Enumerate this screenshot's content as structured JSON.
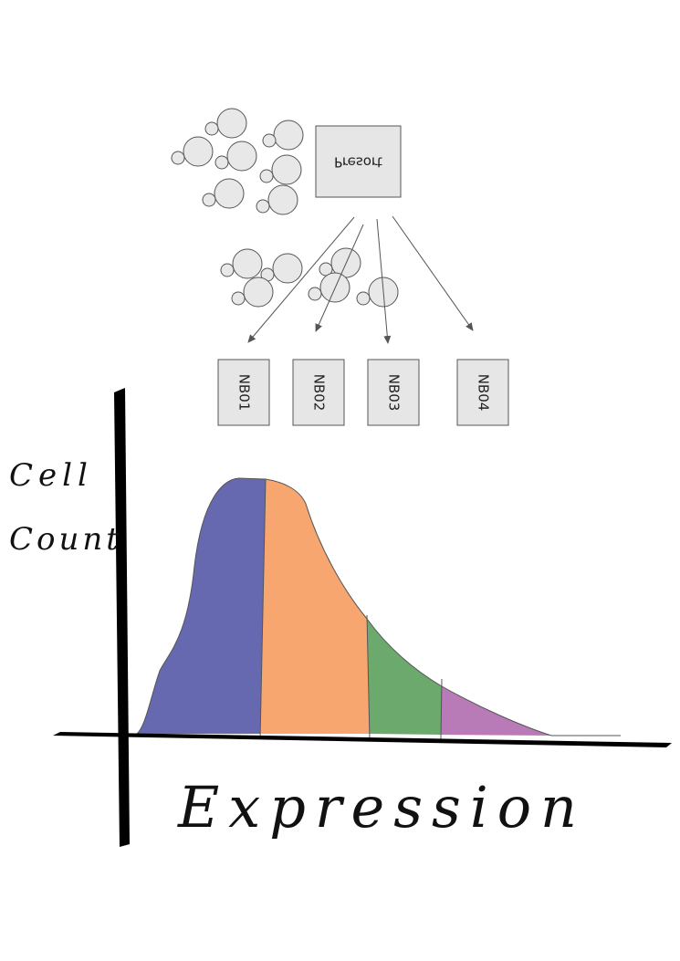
{
  "top_box": {
    "label": "Presort"
  },
  "bins": [
    {
      "label": "NB01",
      "color": "#6769b0"
    },
    {
      "label": "NB02",
      "color": "#f6a66e"
    },
    {
      "label": "NB03",
      "color": "#6baa6c"
    },
    {
      "label": "NB04",
      "color": "#b97ab8"
    }
  ],
  "axes": {
    "y_label_line1": "Cell",
    "y_label_line2": "Count",
    "x_label": "Expression"
  },
  "colors": {
    "box_fill": "#e6e6e6",
    "box_stroke": "#555555",
    "cell_fill": "#e8e8e8",
    "cell_stroke": "#555555",
    "axis": "#000000",
    "arrow": "#555555"
  }
}
